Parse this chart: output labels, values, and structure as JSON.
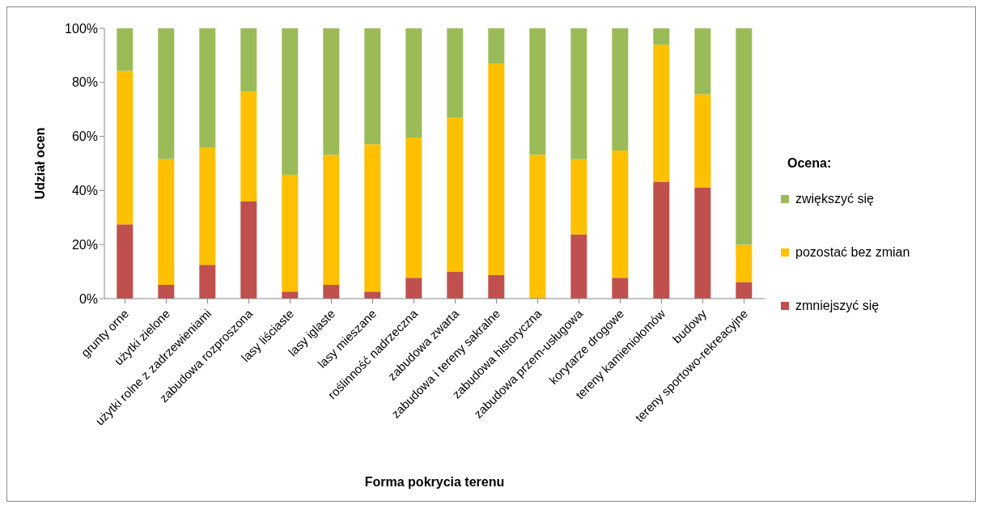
{
  "chart_data": {
    "type": "bar",
    "stacked": true,
    "xlabel": "Forma pokrycia terenu",
    "ylabel": "Udział ocen",
    "legend_title": "Ocena:",
    "legend": "right",
    "grid": false,
    "categories": [
      "grunty orne",
      "użytki zielone",
      "użytki rolne z zadrzewieniami",
      "zabudowa rozproszona",
      "lasy liściaste",
      "lasy iglaste",
      "lasy mieszane",
      "roślinność nadrzeczna",
      "zabudowa zwarta",
      "zabudowa i tereny sakralne",
      "zabudowa historyczna",
      "zabudowa przem-usługowa",
      "korytarze drogowe",
      "tereny kamieniołomów",
      "budowy",
      "tereny sportowo-rekreacyjne"
    ],
    "ylim": [
      0,
      100
    ],
    "yticks": [
      {
        "value": 0,
        "label": "0%"
      },
      {
        "value": 20,
        "label": "20%"
      },
      {
        "value": 40,
        "label": "40%"
      },
      {
        "value": 60,
        "label": "60%"
      },
      {
        "value": 80,
        "label": "80%"
      },
      {
        "value": 100,
        "label": "100%"
      }
    ],
    "series": [
      {
        "name": "zmniejszyć się",
        "color": "#c0504d",
        "values": [
          27.5,
          5.1,
          12.5,
          35.9,
          2.6,
          5.1,
          2.6,
          7.7,
          9.9,
          8.7,
          0,
          23.7,
          7.7,
          43.3,
          41,
          6.1
        ]
      },
      {
        "name": "pozostać bez zmian",
        "color": "#ffc000",
        "values": [
          56.8,
          46.5,
          43.3,
          40.7,
          43.2,
          48.1,
          54.5,
          51.9,
          57.1,
          78.2,
          53.2,
          27.9,
          47.1,
          50.6,
          34.6,
          13.8
        ]
      },
      {
        "name": "zwiększyć się",
        "color": "#9bbb59",
        "values": [
          15.7,
          48.4,
          44.2,
          23.4,
          54.2,
          46.8,
          42.9,
          40.4,
          33,
          13.1,
          46.8,
          48.4,
          45.2,
          6.1,
          24.4,
          80.1
        ]
      }
    ]
  }
}
